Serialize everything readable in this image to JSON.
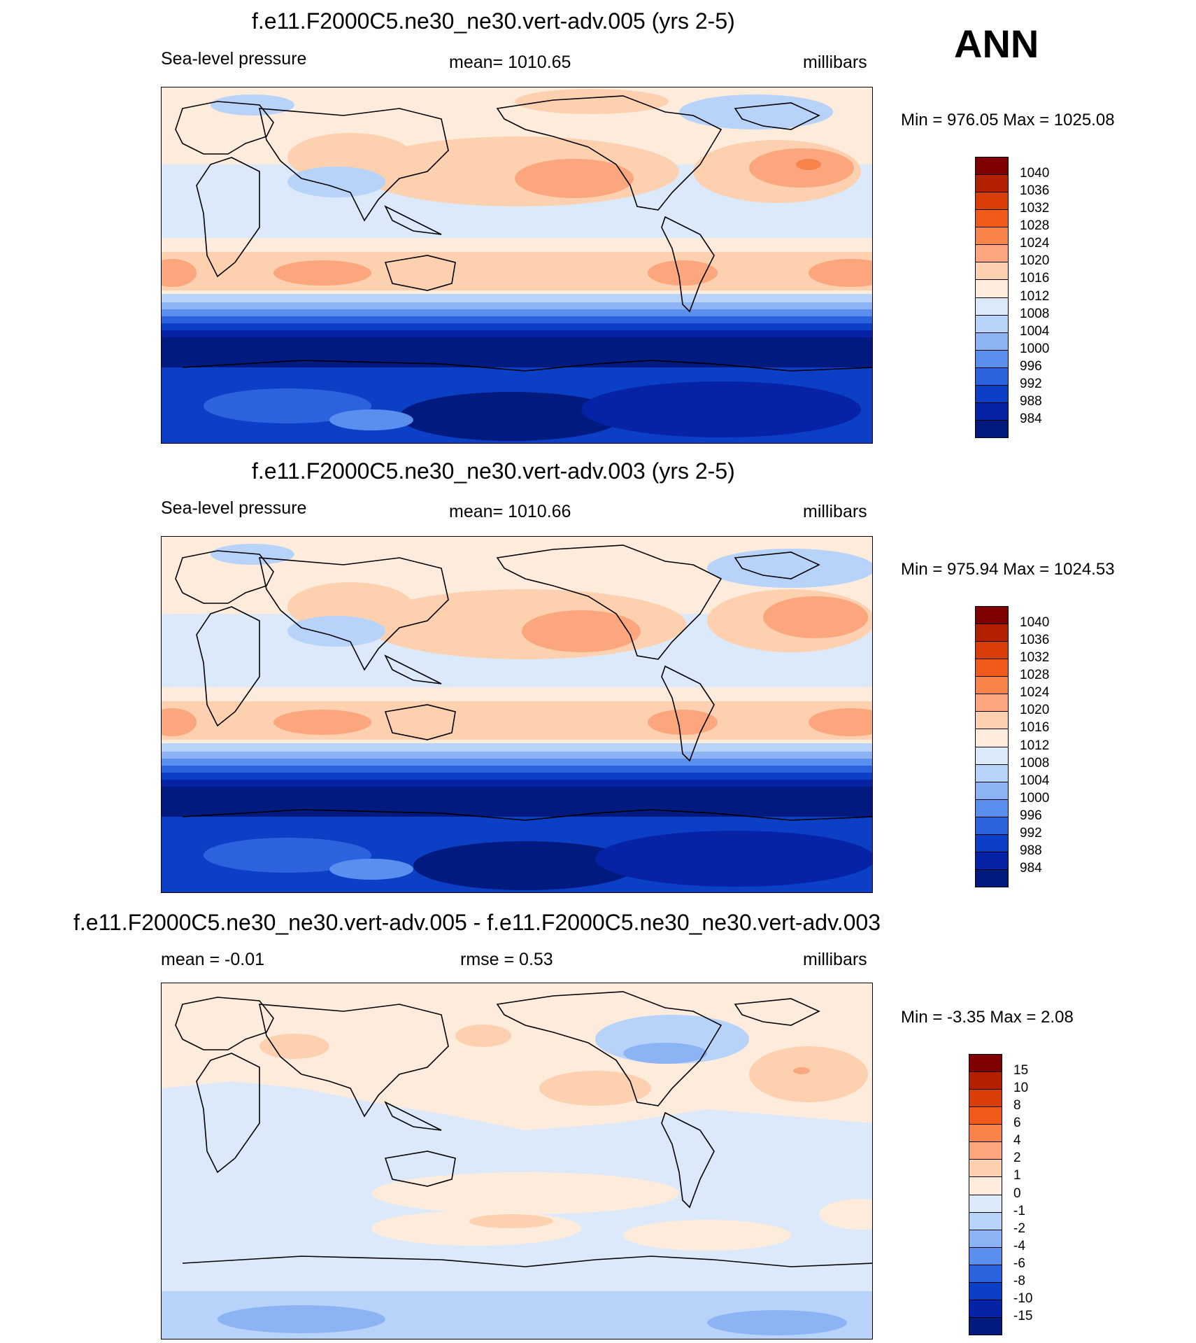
{
  "season": "ANN",
  "panels": [
    {
      "title": "f.e11.F2000C5.ne30_ne30.vert-adv.005 (yrs 2-5)",
      "left_label": "Sea-level pressure",
      "center_label": "mean= 1010.65",
      "units": "millibars",
      "minmax": "Min = 976.05 Max = 1025.08"
    },
    {
      "title": "f.e11.F2000C5.ne30_ne30.vert-adv.003 (yrs 2-5)",
      "left_label": "Sea-level pressure",
      "center_label": "mean= 1010.66",
      "units": "millibars",
      "minmax": "Min = 975.94 Max = 1024.53"
    },
    {
      "title": "f.e11.F2000C5.ne30_ne30.vert-adv.005 - f.e11.F2000C5.ne30_ne30.vert-adv.003",
      "left_label": "mean =  -0.01",
      "center_label": "rmse =   0.53",
      "units": "millibars",
      "minmax": "Min =  -3.35 Max =   2.08"
    }
  ],
  "chart_data": [
    {
      "type": "heatmap",
      "title": "f.e11.F2000C5.ne30_ne30.vert-adv.005 (yrs 2-5)",
      "variable": "Sea-level pressure",
      "units": "millibars",
      "mean": 1010.65,
      "min": 976.05,
      "max": 1025.08,
      "colorbar_labels": [
        "1040",
        "1036",
        "1032",
        "1028",
        "1024",
        "1020",
        "1016",
        "1012",
        "1008",
        "1004",
        "1000",
        "996",
        "992",
        "988",
        "984"
      ],
      "colors": [
        "#7f0000",
        "#b22000",
        "#d93d08",
        "#f05a1a",
        "#f8834a",
        "#fba67d",
        "#fdd0b0",
        "#fdebdc",
        "#dce9fb",
        "#b8d3fa",
        "#8cb4f5",
        "#5a8ff0",
        "#2b62dd",
        "#0b3fc6",
        "#0622a6",
        "#001a80"
      ]
    },
    {
      "type": "heatmap",
      "title": "f.e11.F2000C5.ne30_ne30.vert-adv.003 (yrs 2-5)",
      "variable": "Sea-level pressure",
      "units": "millibars",
      "mean": 1010.66,
      "min": 975.94,
      "max": 1024.53,
      "colorbar_labels": [
        "1040",
        "1036",
        "1032",
        "1028",
        "1024",
        "1020",
        "1016",
        "1012",
        "1008",
        "1004",
        "1000",
        "996",
        "992",
        "988",
        "984"
      ],
      "colors": [
        "#7f0000",
        "#b22000",
        "#d93d08",
        "#f05a1a",
        "#f8834a",
        "#fba67d",
        "#fdd0b0",
        "#fdebdc",
        "#dce9fb",
        "#b8d3fa",
        "#8cb4f5",
        "#5a8ff0",
        "#2b62dd",
        "#0b3fc6",
        "#0622a6",
        "#001a80"
      ]
    },
    {
      "type": "heatmap",
      "title": "f.e11.F2000C5.ne30_ne30.vert-adv.005 - f.e11.F2000C5.ne30_ne30.vert-adv.003",
      "units": "millibars",
      "mean": -0.01,
      "rmse": 0.53,
      "min": -3.35,
      "max": 2.08,
      "colorbar_labels": [
        "15",
        "10",
        "8",
        "6",
        "4",
        "2",
        "1",
        "0",
        "-1",
        "-2",
        "-4",
        "-6",
        "-8",
        "-10",
        "-15"
      ],
      "colors": [
        "#7f0000",
        "#b22000",
        "#d93d08",
        "#f05a1a",
        "#f8834a",
        "#fba67d",
        "#fdd0b0",
        "#fdebdc",
        "#dce9fb",
        "#b8d3fa",
        "#8cb4f5",
        "#5a8ff0",
        "#2b62dd",
        "#0b3fc6",
        "#0622a6",
        "#001a80"
      ]
    }
  ]
}
